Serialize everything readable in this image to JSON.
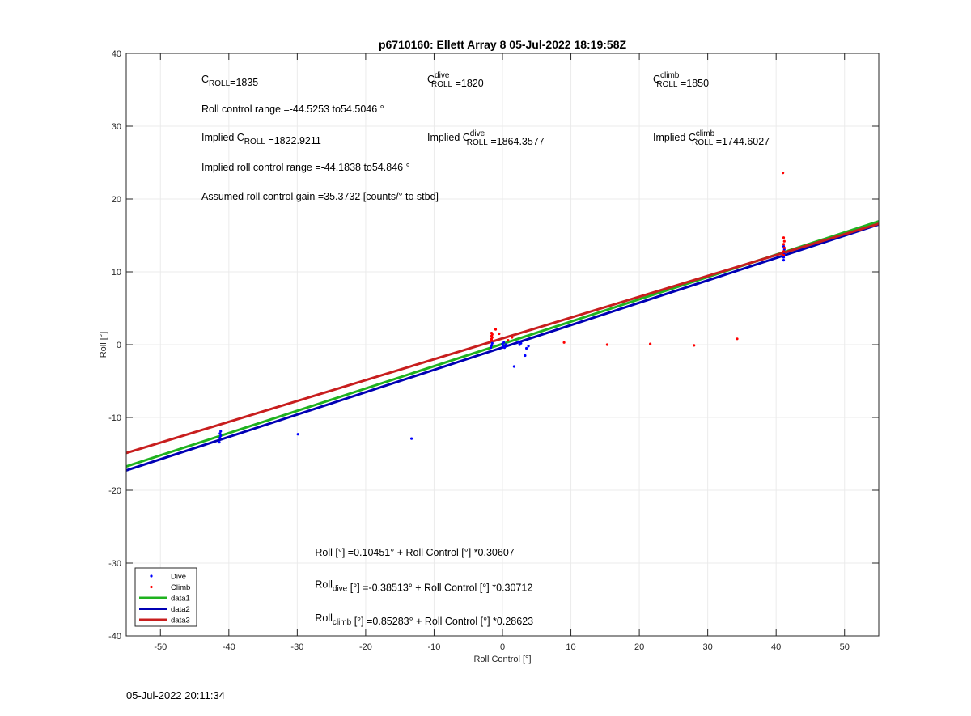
{
  "chart_data": {
    "type": "scatter",
    "title": "p6710160: Ellett Array 8 05-Jul-2022 18:19:58Z",
    "xlabel": "Roll Control [°]",
    "ylabel": "Roll [°]",
    "xlim": [
      -55,
      55
    ],
    "ylim": [
      -40,
      40
    ],
    "xticks": [
      -50,
      -40,
      -30,
      -20,
      -10,
      0,
      10,
      20,
      30,
      40,
      50
    ],
    "yticks": [
      -40,
      -30,
      -20,
      -10,
      0,
      10,
      20,
      30,
      40
    ],
    "grid": true,
    "legend_position": "bottom-left",
    "series": [
      {
        "name": "Dive",
        "kind": "points",
        "color": "#0000ff",
        "points": [
          [
            -41.2,
            -11.9
          ],
          [
            -41.3,
            -12.2
          ],
          [
            -41.2,
            -12.5
          ],
          [
            -41.3,
            -12.8
          ],
          [
            -41.4,
            -13.4
          ],
          [
            -29.9,
            -12.3
          ],
          [
            -13.3,
            -12.9
          ],
          [
            -1.7,
            -0.4
          ],
          [
            -1.6,
            -0.1
          ],
          [
            -1.5,
            0.2
          ],
          [
            0.0,
            0.1
          ],
          [
            0.1,
            -0.2
          ],
          [
            0.2,
            0.3
          ],
          [
            0.3,
            -0.4
          ],
          [
            0.5,
            0.0
          ],
          [
            0.6,
            -0.1
          ],
          [
            1.7,
            -3.0
          ],
          [
            2.3,
            0.4
          ],
          [
            2.5,
            0.0
          ],
          [
            2.7,
            0.2
          ],
          [
            3.3,
            -1.5
          ],
          [
            3.5,
            -0.5
          ],
          [
            3.8,
            -0.2
          ],
          [
            41.1,
            11.6
          ],
          [
            41.1,
            12.0
          ],
          [
            41.2,
            12.4
          ],
          [
            41.1,
            12.8
          ],
          [
            41.2,
            13.1
          ],
          [
            41.1,
            13.5
          ]
        ]
      },
      {
        "name": "Climb",
        "kind": "points",
        "color": "#ff0000",
        "points": [
          [
            -1.6,
            0.6
          ],
          [
            -1.6,
            0.8
          ],
          [
            -1.5,
            1.0
          ],
          [
            -1.6,
            1.2
          ],
          [
            -1.5,
            1.4
          ],
          [
            -1.6,
            1.6
          ],
          [
            -1.0,
            2.1
          ],
          [
            -0.5,
            1.5
          ],
          [
            0.8,
            0.6
          ],
          [
            1.4,
            1.0
          ],
          [
            9.0,
            0.3
          ],
          [
            15.3,
            0.0
          ],
          [
            21.6,
            0.1
          ],
          [
            28.0,
            -0.1
          ],
          [
            34.3,
            0.8
          ],
          [
            41.1,
            12.3
          ],
          [
            41.1,
            12.8
          ],
          [
            41.2,
            13.3
          ],
          [
            41.1,
            13.8
          ],
          [
            41.2,
            14.2
          ],
          [
            41.1,
            14.7
          ],
          [
            41.0,
            23.6
          ]
        ]
      },
      {
        "name": "data1",
        "kind": "line",
        "color": "#1fb21f",
        "points": [
          [
            -55,
            -16.729
          ],
          [
            55,
            16.939
          ]
        ]
      },
      {
        "name": "data2",
        "kind": "line",
        "color": "#0000b4",
        "points": [
          [
            -55,
            -17.277
          ],
          [
            55,
            16.506
          ]
        ]
      },
      {
        "name": "data3",
        "kind": "line",
        "color": "#c81e1e",
        "points": [
          [
            -55,
            -14.89
          ],
          [
            55,
            16.595
          ]
        ]
      }
    ],
    "annotations": [
      {
        "x": -44,
        "y": 36,
        "lines": [
          {
            "parts": [
              {
                "t": "C"
              },
              {
                "sub": "ROLL"
              },
              {
                "t": "=1835"
              }
            ]
          }
        ]
      },
      {
        "x": -11,
        "y": 36,
        "lines": [
          {
            "parts": [
              {
                "t": "C"
              },
              {
                "sup": "dive",
                "sub": "ROLL"
              },
              {
                "t": " =1820"
              }
            ]
          }
        ]
      },
      {
        "x": 22,
        "y": 36,
        "lines": [
          {
            "parts": [
              {
                "t": "C"
              },
              {
                "sup": "climb",
                "sub": "ROLL"
              },
              {
                "t": " =1850"
              }
            ]
          }
        ]
      },
      {
        "x": -44,
        "y": 31.9,
        "lines": [
          {
            "parts": [
              {
                "t": "Roll control range =-44.5253 to54.5046 °"
              }
            ]
          }
        ]
      },
      {
        "x": -44,
        "y": 28.0,
        "lines": [
          {
            "parts": [
              {
                "t": "Implied C"
              },
              {
                "sub": "ROLL"
              },
              {
                "t": " =1822.9211"
              }
            ]
          }
        ]
      },
      {
        "x": -11,
        "y": 28.0,
        "lines": [
          {
            "parts": [
              {
                "t": "Implied C"
              },
              {
                "sup": "dive",
                "sub": "ROLL"
              },
              {
                "t": " =1864.3577"
              }
            ]
          }
        ]
      },
      {
        "x": 22,
        "y": 28.0,
        "lines": [
          {
            "parts": [
              {
                "t": "Implied C"
              },
              {
                "sup": "climb",
                "sub": "ROLL"
              },
              {
                "t": " =1744.6027"
              }
            ]
          }
        ]
      },
      {
        "x": -44,
        "y": 23.9,
        "lines": [
          {
            "parts": [
              {
                "t": "Implied roll control range =-44.1838 to54.846 °"
              }
            ]
          }
        ]
      },
      {
        "x": -44,
        "y": 19.9,
        "lines": [
          {
            "parts": [
              {
                "t": "Assumed roll control gain =35.3732 [counts/° to stbd]"
              }
            ]
          }
        ]
      },
      {
        "x": -27.4,
        "y": -29.0,
        "lines": [
          {
            "parts": [
              {
                "t": "Roll [°] =0.10451° + Roll Control [°] *0.30607"
              }
            ]
          }
        ]
      },
      {
        "x": -27.4,
        "y": -33.4,
        "lines": [
          {
            "parts": [
              {
                "t": "Roll"
              },
              {
                "sub": "dive"
              },
              {
                "t": " [°] =-0.38513° + Roll Control [°] *0.30712"
              }
            ]
          }
        ]
      },
      {
        "x": -27.4,
        "y": -38.0,
        "lines": [
          {
            "parts": [
              {
                "t": "Roll"
              },
              {
                "sub": "climb"
              },
              {
                "t": " [°] =0.85283° + Roll Control [°] *0.28623"
              }
            ]
          }
        ]
      }
    ]
  },
  "footer": {
    "timestamp": "05-Jul-2022 20:11:34"
  },
  "colors": {
    "axis": "#262626",
    "grid": "#ebebeb",
    "background": "#ffffff"
  }
}
